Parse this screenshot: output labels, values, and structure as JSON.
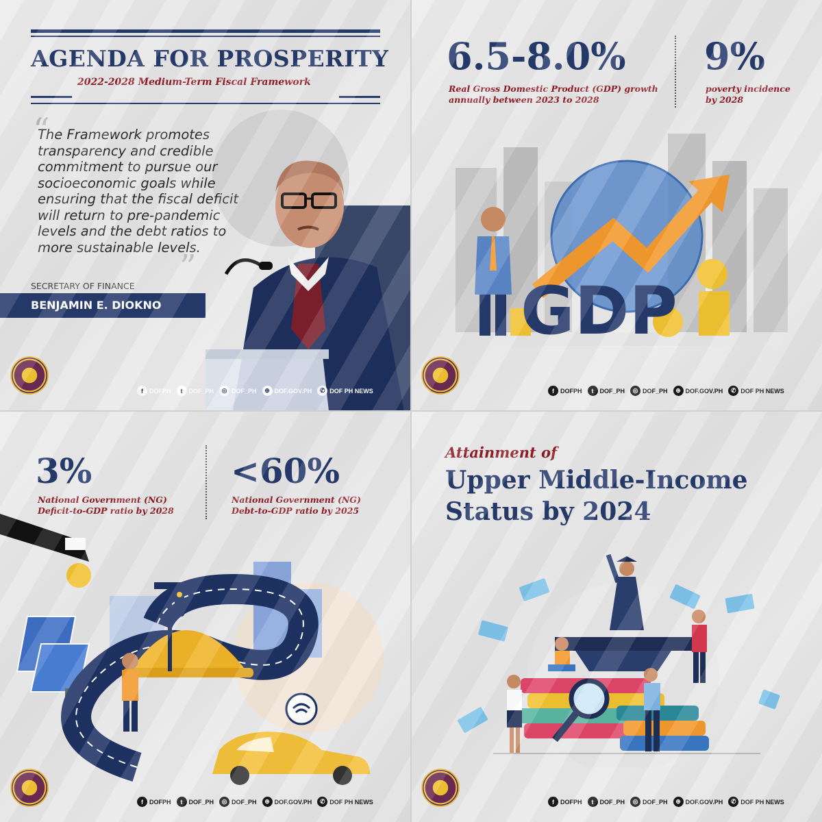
{
  "panel1": {
    "title": "AGENDA FOR PROSPERITY",
    "subtitle": "2022-2028 Medium-Term Fiscal Framework",
    "quote": "The Framework promotes transparency and credible commitment to pursue our socioeconomic goals while ensuring that the fiscal deficit will return to pre-pandemic levels and the debt ratios to more sustainable levels.",
    "speaker_role": "SECRETARY OF FINANCE",
    "speaker_name": "BENJAMIN E. DIOKNO"
  },
  "panel2": {
    "stat1_value": "6.5-8.0%",
    "stat1_label_line1": "Real Gross Domestic Product (GDP) growth",
    "stat1_label_line2": "annually between 2023 to 2028",
    "stat2_value": "9%",
    "stat2_label_line1": "poverty incidence",
    "stat2_label_line2": "by 2028",
    "illustration_text": "GDP"
  },
  "panel3": {
    "stat1_value": "3%",
    "stat1_label_line1": "National Government (NG)",
    "stat1_label_line2": "Deficit-to-GDP ratio by 2028",
    "stat2_value": "<60%",
    "stat2_label_line1": "National Government (NG)",
    "stat2_label_line2": "Debt-to-GDP ratio by 2025"
  },
  "panel4": {
    "kicker": "Attainment of",
    "title_line1": "Upper Middle-Income",
    "title_line2": "Status by 2024"
  },
  "social": {
    "facebook": "DOFPH",
    "twitter": "DOF_PH",
    "instagram": "DOF_PH",
    "website": "DOF.GOV.PH",
    "viber": "DOF PH NEWS"
  },
  "seal_text": "DEPARTMENT OF FINANCE REPUBLIC OF THE PHILIPPINES",
  "colors": {
    "navy": "#263a6b",
    "maroon": "#8f1c25",
    "orange": "#f29a2e",
    "gold": "#f1c232"
  }
}
